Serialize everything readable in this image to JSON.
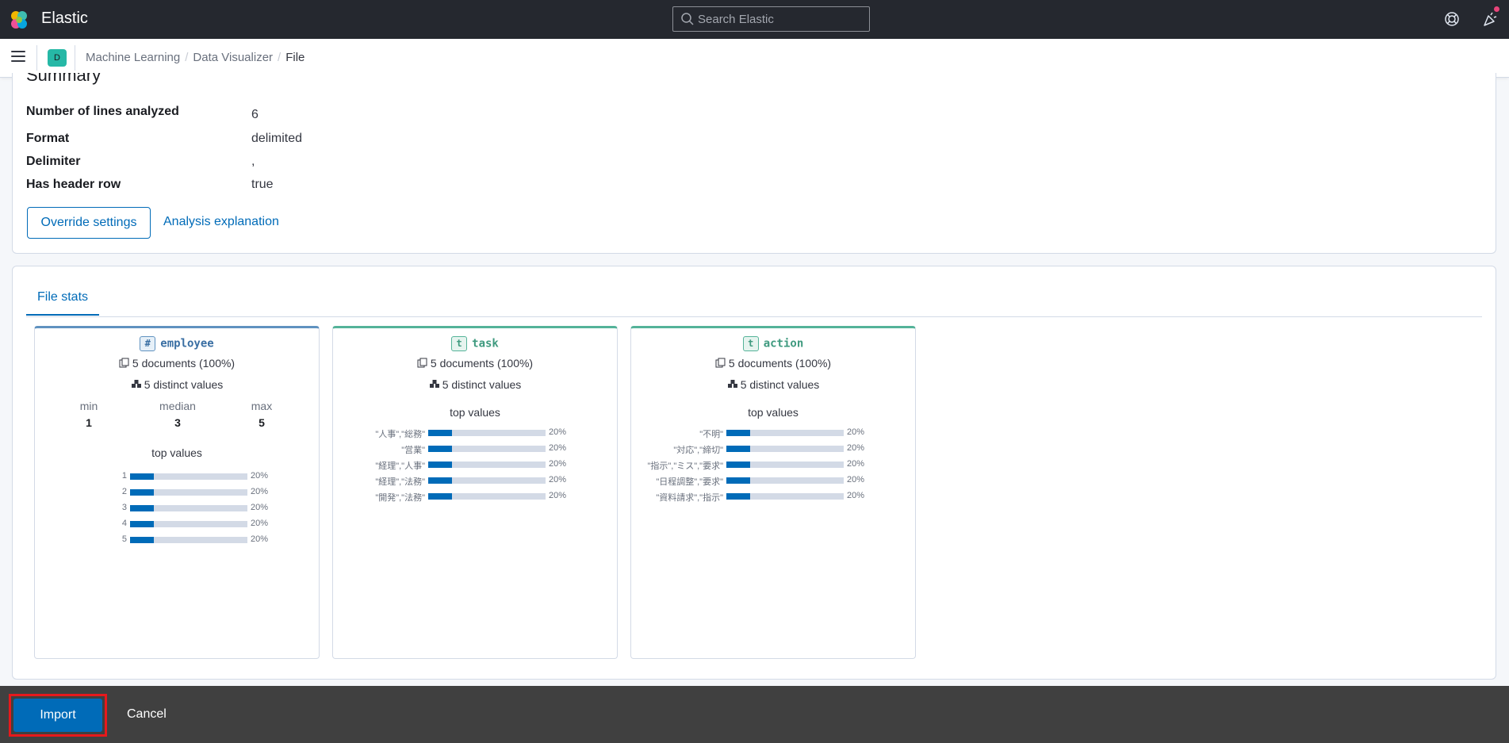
{
  "header": {
    "brand": "Elastic",
    "search_placeholder": "Search Elastic"
  },
  "nav": {
    "space_initial": "D",
    "breadcrumbs": [
      "Machine Learning",
      "Data Visualizer",
      "File"
    ]
  },
  "summary": {
    "title": "Summary",
    "rows": [
      {
        "label": "Number of lines analyzed",
        "value": "6"
      },
      {
        "label": "Format",
        "value": "delimited"
      },
      {
        "label": "Delimiter",
        "value": ","
      },
      {
        "label": "Has header row",
        "value": "true"
      }
    ],
    "override_button": "Override settings",
    "explanation_link": "Analysis explanation"
  },
  "file_stats": {
    "tab_label": "File stats",
    "cards": [
      {
        "type_badge": "#",
        "name": "employee",
        "documents": "5 documents (100%)",
        "distinct": "5 distinct values",
        "min_label": "min",
        "min": "1",
        "median_label": "median",
        "median": "3",
        "max_label": "max",
        "max": "5",
        "top_values_title": "top values",
        "top_values": [
          {
            "label": "1",
            "pct": "20%",
            "fraction": 0.2
          },
          {
            "label": "2",
            "pct": "20%",
            "fraction": 0.2
          },
          {
            "label": "3",
            "pct": "20%",
            "fraction": 0.2
          },
          {
            "label": "4",
            "pct": "20%",
            "fraction": 0.2
          },
          {
            "label": "5",
            "pct": "20%",
            "fraction": 0.2
          }
        ]
      },
      {
        "type_badge": "t",
        "name": "task",
        "documents": "5 documents (100%)",
        "distinct": "5 distinct values",
        "top_values_title": "top values",
        "top_values": [
          {
            "label": "\"人事\",\"総務\"",
            "pct": "20%",
            "fraction": 0.2
          },
          {
            "label": "\"営業\"",
            "pct": "20%",
            "fraction": 0.2
          },
          {
            "label": "\"経理\",\"人事\"",
            "pct": "20%",
            "fraction": 0.2
          },
          {
            "label": "\"経理\",\"法務\"",
            "pct": "20%",
            "fraction": 0.2
          },
          {
            "label": "\"開発\",\"法務\"",
            "pct": "20%",
            "fraction": 0.2
          }
        ]
      },
      {
        "type_badge": "t",
        "name": "action",
        "documents": "5 documents (100%)",
        "distinct": "5 distinct values",
        "top_values_title": "top values",
        "top_values": [
          {
            "label": "\"不明\"",
            "pct": "20%",
            "fraction": 0.2
          },
          {
            "label": "\"対応\",\"締切\"",
            "pct": "20%",
            "fraction": 0.2
          },
          {
            "label": "\"指示\",\"ミス\",\"要求\"",
            "pct": "20%",
            "fraction": 0.2
          },
          {
            "label": "\"日程調整\",\"要求\"",
            "pct": "20%",
            "fraction": 0.2
          },
          {
            "label": "\"資料請求\",\"指示\"",
            "pct": "20%",
            "fraction": 0.2
          }
        ]
      }
    ]
  },
  "footer": {
    "import_label": "Import",
    "cancel_label": "Cancel"
  },
  "colors": {
    "header_bg": "#25282f",
    "accent": "#006bb8",
    "number_field": "#6092c0",
    "text_field": "#54b399",
    "footer_bg": "#404040",
    "highlight": "#e7191c"
  }
}
